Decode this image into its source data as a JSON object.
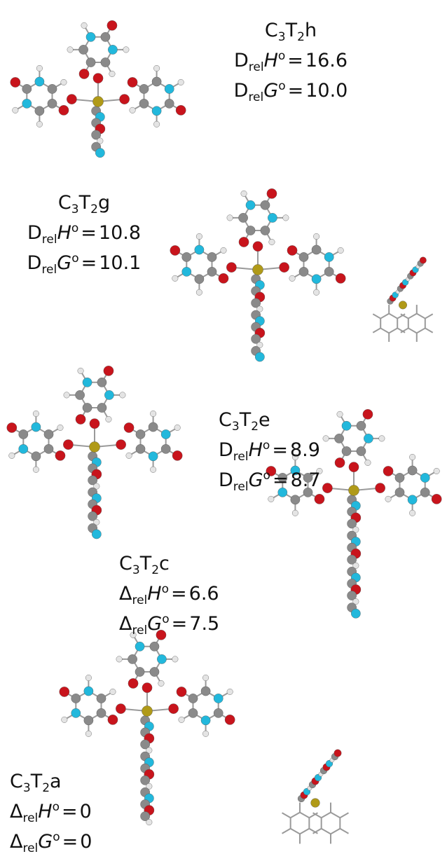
{
  "structures": [
    {
      "name": {
        "base": "C",
        "sub1": "3",
        "mid": "T",
        "sub2": "2",
        "suffix": "h"
      },
      "enthalpy": {
        "symbol": "D",
        "sub": "rel",
        "quantity": "H",
        "sup": "o",
        "relation": "=",
        "value": 16.6
      },
      "free_energy": {
        "symbol": "D",
        "sub": "rel",
        "quantity": "G",
        "sup": "o",
        "relation": "=",
        "value": "10.0"
      }
    },
    {
      "name": {
        "base": "C",
        "sub1": "3",
        "mid": "T",
        "sub2": "2",
        "suffix": "g"
      },
      "enthalpy": {
        "symbol": "D",
        "sub": "rel",
        "quantity": "H",
        "sup": "o",
        "relation": "=",
        "value": 10.8
      },
      "free_energy": {
        "symbol": "D",
        "sub": "rel",
        "quantity": "G",
        "sup": "o",
        "relation": "=",
        "value": 10.1
      }
    },
    {
      "name": {
        "base": "C",
        "sub1": "3",
        "mid": "T",
        "sub2": "2",
        "suffix": "e"
      },
      "enthalpy": {
        "symbol": "D",
        "sub": "rel",
        "quantity": "H",
        "sup": "o",
        "relation": "=",
        "value": 8.9
      },
      "free_energy": {
        "symbol": "D",
        "sub": "rel",
        "quantity": "G",
        "sup": "o",
        "relation": "=",
        "value": 8.7
      }
    },
    {
      "name": {
        "base": "C",
        "sub1": "3",
        "mid": "T",
        "sub2": "2",
        "suffix": "c"
      },
      "enthalpy": {
        "symbol": "Δ",
        "sub": "rel",
        "quantity": "H",
        "sup": "o",
        "relation": "=",
        "value": 6.6
      },
      "free_energy": {
        "symbol": "Δ",
        "sub": "rel",
        "quantity": "G",
        "sup": "o",
        "relation": "=",
        "value": 7.5
      }
    },
    {
      "name": {
        "base": "C",
        "sub1": "3",
        "mid": "T",
        "sub2": "2",
        "suffix": "a"
      },
      "enthalpy": {
        "symbol": "Δ",
        "sub": "rel",
        "quantity": "H",
        "sup": "o",
        "relation": "=",
        "value": 0
      },
      "free_energy": {
        "symbol": "Δ",
        "sub": "rel",
        "quantity": "G",
        "sup": "o",
        "relation": "=",
        "value": 0
      }
    }
  ]
}
